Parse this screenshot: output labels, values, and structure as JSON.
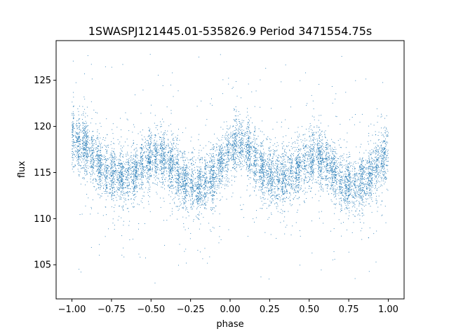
{
  "chart_data": {
    "type": "scatter",
    "title": "1SWASPJ121445.01-535826.9 Period 3471554.75s",
    "xlabel": "phase",
    "ylabel": "flux",
    "xlim": [
      -1.1,
      1.1
    ],
    "ylim": [
      101.3,
      129.3
    ],
    "xticks": [
      -1.0,
      -0.75,
      -0.5,
      -0.25,
      0.0,
      0.25,
      0.5,
      0.75,
      1.0
    ],
    "xtick_labels": [
      "−1.00",
      "−0.75",
      "−0.50",
      "−0.25",
      "0.00",
      "0.25",
      "0.50",
      "0.75",
      "1.00"
    ],
    "yticks": [
      105,
      110,
      115,
      120,
      125
    ],
    "ytick_labels": [
      "105",
      "110",
      "115",
      "120",
      "125"
    ],
    "grid": false,
    "marker_color": "#1f77b4",
    "series": [
      {
        "profile": {
          "x": [
            -1.0,
            -0.95,
            -0.9,
            -0.85,
            -0.8,
            -0.75,
            -0.7,
            -0.65,
            -0.6,
            -0.55,
            -0.5,
            -0.45,
            -0.4,
            -0.35,
            -0.3,
            -0.25,
            -0.2,
            -0.15,
            -0.1,
            -0.05,
            0.0,
            0.05,
            0.1,
            0.15,
            0.2,
            0.25,
            0.3,
            0.35,
            0.4,
            0.45,
            0.5,
            0.55,
            0.6,
            0.65,
            0.7,
            0.75,
            0.8,
            0.85,
            0.9,
            0.95,
            1.0
          ],
          "y": [
            119.0,
            118.2,
            117.5,
            116.5,
            115.3,
            114.8,
            114.4,
            114.5,
            115.0,
            115.8,
            116.5,
            116.8,
            116.2,
            115.2,
            114.2,
            113.6,
            113.5,
            114.0,
            115.0,
            116.2,
            117.5,
            118.3,
            117.8,
            116.5,
            115.3,
            114.8,
            114.4,
            114.5,
            115.0,
            115.8,
            116.5,
            116.8,
            116.2,
            115.2,
            114.2,
            113.6,
            113.5,
            114.0,
            115.0,
            116.2,
            117.5
          ]
        },
        "scatter_sd": 1.5,
        "outlier_range": [
          102.8,
          128.3
        ],
        "n_points": 9000
      }
    ]
  }
}
